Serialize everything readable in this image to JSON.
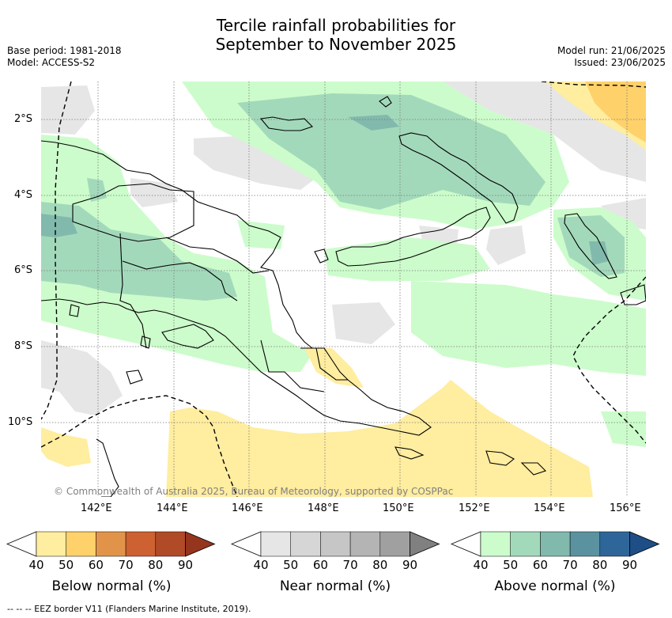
{
  "header": {
    "title_line1": "Tercile rainfall probabilities for",
    "title_line2": "September to November 2025",
    "base_period": "Base period: 1981-2018",
    "model": "Model: ACCESS-S2",
    "model_run": "Model run: 21/06/2025",
    "issued": "Issued: 23/06/2025"
  },
  "map": {
    "lat_labels": [
      "2°S",
      "4°S",
      "6°S",
      "8°S",
      "10°S"
    ],
    "lon_labels": [
      "142°E",
      "144°E",
      "146°E",
      "148°E",
      "150°E",
      "152°E",
      "154°E",
      "156°E"
    ],
    "copyright": "© Commonwealth of Australia 2025, Bureau of Meteorology, supported by COSPPac"
  },
  "colorbars": [
    {
      "caption": "Below normal (%)",
      "colors": [
        "#ffeda0",
        "#fed16a",
        "#e19449",
        "#cd6131",
        "#b04a27",
        "#96351d"
      ],
      "ticks": [
        "40",
        "50",
        "60",
        "70",
        "80",
        "90"
      ]
    },
    {
      "caption": "Near normal (%)",
      "colors": [
        "#e6e6e6",
        "#d6d6d6",
        "#c6c6c6",
        "#b4b4b4",
        "#a0a0a0",
        "#808080"
      ],
      "ticks": [
        "40",
        "50",
        "60",
        "70",
        "80",
        "90"
      ]
    },
    {
      "caption": "Above normal (%)",
      "colors": [
        "#ccfccb",
        "#a3d9bb",
        "#82b9ad",
        "#5a92a0",
        "#2f6699",
        "#1e4e86"
      ],
      "ticks": [
        "40",
        "50",
        "60",
        "70",
        "80",
        "90"
      ]
    }
  ],
  "footer": {
    "legend": "--  --  -- EEZ border V11 (Flanders Marine Institute, 2019)."
  }
}
